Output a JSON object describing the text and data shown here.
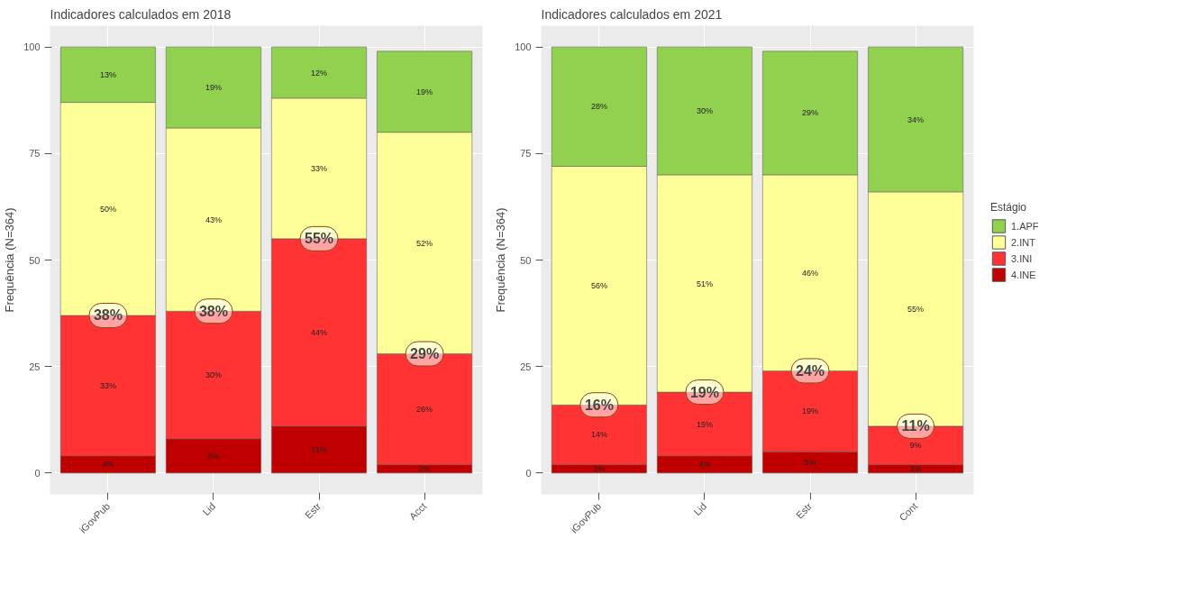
{
  "chart_data": [
    {
      "type": "bar",
      "title": "Indicadores calculados em 2018",
      "ylabel": "Frequência (N=364)",
      "categories": [
        "iGovPub",
        "Lid",
        "Estr",
        "Acct"
      ],
      "stacked": true,
      "ylim": [
        -5,
        105
      ],
      "yticks": [
        0,
        25,
        50,
        75,
        100
      ],
      "grid": true,
      "series": [
        {
          "color": "#c00000",
          "values": [
            4,
            8,
            11,
            2
          ],
          "value_labels": [
            "4%",
            "8%",
            "11%",
            "2%"
          ]
        },
        {
          "color": "#ff3333",
          "values": [
            33,
            30,
            44,
            26
          ],
          "value_labels": [
            "33%",
            "30%",
            "44%",
            "26%"
          ]
        },
        {
          "color": "#ffff99",
          "values": [
            50,
            43,
            33,
            52
          ],
          "value_labels": [
            "50%",
            "43%",
            "33%",
            "52%"
          ]
        },
        {
          "color": "#92d050",
          "values": [
            13,
            19,
            12,
            19
          ],
          "value_labels": [
            "13%",
            "19%",
            "12%",
            "19%"
          ]
        }
      ],
      "annotations": [
        {
          "text": "38%",
          "x": "iGovPub",
          "y": 37
        },
        {
          "text": "38%",
          "x": "Lid",
          "y": 38
        },
        {
          "text": "55%",
          "x": "Estr",
          "y": 55
        },
        {
          "text": "29%",
          "x": "Acct",
          "y": 28
        }
      ]
    },
    {
      "type": "bar",
      "title": "Indicadores calculados em 2021",
      "ylabel": "Frequência (N=364)",
      "categories": [
        "iGovPub",
        "Lid",
        "Estr",
        "Cont"
      ],
      "stacked": true,
      "ylim": [
        -5,
        105
      ],
      "yticks": [
        0,
        25,
        50,
        75,
        100
      ],
      "grid": true,
      "legend": "right",
      "legend_title": "Estágio",
      "series": [
        {
          "name": "4.INE",
          "color": "#c00000",
          "values": [
            2,
            4,
            5,
            2
          ],
          "value_labels": [
            "2%",
            "4%",
            "5%",
            "2%"
          ]
        },
        {
          "name": "3.INI",
          "color": "#ff3333",
          "values": [
            14,
            15,
            19,
            9
          ],
          "value_labels": [
            "14%",
            "15%",
            "19%",
            "9%"
          ]
        },
        {
          "name": "2.INT",
          "color": "#ffff99",
          "values": [
            56,
            51,
            46,
            55
          ],
          "value_labels": [
            "56%",
            "51%",
            "46%",
            "55%"
          ]
        },
        {
          "name": "1.APF",
          "color": "#92d050",
          "values": [
            28,
            30,
            29,
            34
          ],
          "value_labels": [
            "28%",
            "30%",
            "29%",
            "34%"
          ]
        }
      ],
      "annotations": [
        {
          "text": "16%",
          "x": "iGovPub",
          "y": 16
        },
        {
          "text": "19%",
          "x": "Lid",
          "y": 19
        },
        {
          "text": "24%",
          "x": "Estr",
          "y": 24
        },
        {
          "text": "11%",
          "x": "Cont",
          "y": 11
        }
      ]
    }
  ]
}
